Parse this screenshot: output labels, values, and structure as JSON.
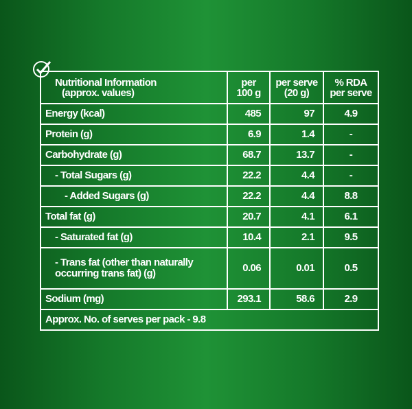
{
  "table": {
    "header": [
      [
        "Nutritional Information",
        "(approx. values)"
      ],
      [
        "per",
        "100 g"
      ],
      [
        "per serve",
        "(20 g)"
      ],
      [
        "% RDA",
        "per serve"
      ]
    ],
    "rows": [
      [
        "Energy (kcal)",
        "485",
        "97",
        "4.9"
      ],
      [
        "Protein (g)",
        "6.9",
        "1.4",
        "-"
      ],
      [
        "Carbohydrate (g)",
        "68.7",
        "13.7",
        "-"
      ],
      [
        "- Total Sugars (g)",
        "22.2",
        "4.4",
        "-"
      ],
      [
        "- Added Sugars (g)",
        "22.2",
        "4.4",
        "8.8"
      ],
      [
        "Total fat (g)",
        "20.7",
        "4.1",
        "6.1"
      ],
      [
        "- Saturated fat (g)",
        "10.4",
        "2.1",
        "9.5"
      ],
      [
        [
          "- Trans fat (other than naturally",
          "occurring trans fat) (g)"
        ],
        "0.06",
        "0.01",
        "0.5"
      ],
      [
        "Sodium (mg)",
        "293.1",
        "58.6",
        "2.9"
      ]
    ],
    "footer": "Approx. No. of serves per pack - 9.8"
  }
}
